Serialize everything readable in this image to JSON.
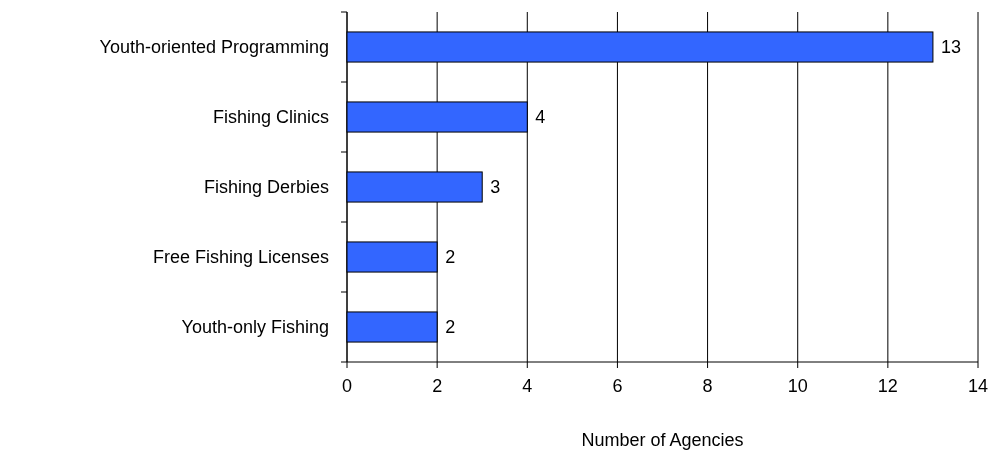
{
  "chart_data": {
    "type": "bar",
    "orientation": "horizontal",
    "categories": [
      "Youth-oriented Programming",
      "Fishing Clinics",
      "Fishing Derbies",
      "Free Fishing Licenses",
      "Youth-only Fishing"
    ],
    "values": [
      13,
      4,
      3,
      2,
      2
    ],
    "color": "#3366ff",
    "xlabel": "Number of Agencies",
    "xlim": [
      0,
      14
    ],
    "xticks": [
      0,
      2,
      4,
      6,
      8,
      10,
      12,
      14
    ],
    "grid": "x",
    "data_labels": true
  }
}
